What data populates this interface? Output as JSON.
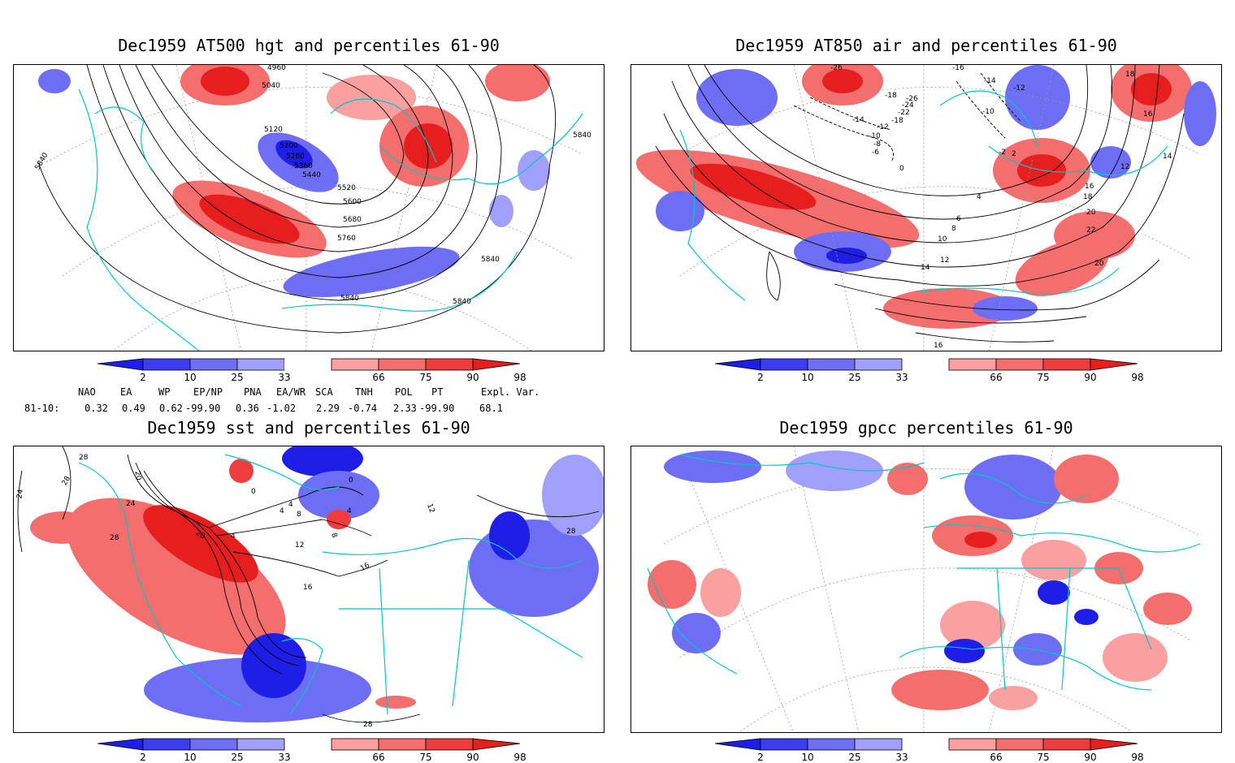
{
  "panels": [
    {
      "id": "p1",
      "title": "Dec1959 AT500 hgt and percentiles 61-90",
      "contour_labels": [
        "4960",
        "5040",
        "5120",
        "5200",
        "5280",
        "5360",
        "5440",
        "5520",
        "5600",
        "5680",
        "5760",
        "5840",
        "5840",
        "5840",
        "5840",
        "5840"
      ]
    },
    {
      "id": "p2",
      "title": "Dec1959 AT850 air and percentiles 61-90",
      "contour_labels": [
        "-26",
        "-18",
        "-14",
        "-12",
        "-10",
        "-8",
        "-6",
        "-2",
        "0",
        "2",
        "4",
        "6",
        "8",
        "10",
        "12",
        "14",
        "16",
        "18",
        "20",
        "22",
        "-16",
        "-14",
        "-12",
        "-10",
        "-26",
        "-24",
        "-22",
        "-18",
        "12",
        "14",
        "16",
        "18",
        "20",
        "16"
      ]
    },
    {
      "id": "p3",
      "title": "Dec1959 sst and percentiles 61-90",
      "contour_labels": [
        "24",
        "28",
        "28",
        "20",
        "24",
        "28",
        "20",
        "4",
        "0",
        "4",
        "8",
        "4",
        "12",
        "16",
        "16",
        "4",
        "0",
        "8",
        "12",
        "28",
        "28"
      ]
    },
    {
      "id": "p4",
      "title": "Dec1959 gpcc percentiles 61-90",
      "contour_labels": []
    }
  ],
  "colorbar": {
    "labels": [
      "2",
      "10",
      "25",
      "33",
      "66",
      "75",
      "90",
      "98"
    ],
    "colors": [
      "#1e1ee6",
      "#3c3cf0",
      "#6e6ef5",
      "#a0a0fa",
      "#ffffff",
      "#faa0a0",
      "#f56e6e",
      "#f03c3c",
      "#e61e1e"
    ]
  },
  "stats": {
    "header": [
      "NAO",
      "EA",
      "WP",
      "EP/NP",
      "PNA",
      "EA/WR",
      "SCA",
      "TNH",
      "POL",
      "PT",
      "Expl. Var."
    ],
    "row_label": "81-10:",
    "values": [
      "0.32",
      "0.49",
      "0.62",
      "-99.90",
      "0.36",
      "-1.02",
      "2.29",
      "-0.74",
      "2.33",
      "-99.90",
      "68.1"
    ]
  },
  "colors": {
    "border": "#00c8c8",
    "contour": "#000000",
    "grid": "#999999"
  }
}
